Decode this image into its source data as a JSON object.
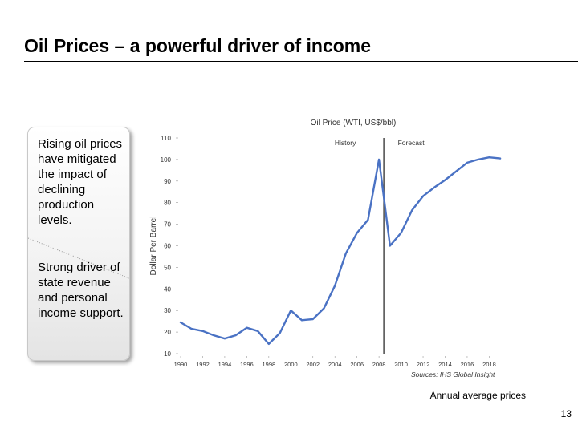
{
  "slide": {
    "title": "Oil Prices – a powerful driver of income",
    "callout": {
      "point1": "Rising oil prices have mitigated the impact of declining production levels.",
      "point2": "Strong driver of state revenue and personal income support."
    },
    "caption": "Annual average prices",
    "page_number": "13"
  },
  "colors": {
    "line": "#4a72c4",
    "divider": "#555555",
    "axis": "#999999"
  },
  "chart_data": {
    "type": "line",
    "title": "Oil Price (WTI, US$/bbl)",
    "ylabel": "Dollar Per Barrel",
    "xlabel": "",
    "source": "Sources: IHS Global Insight",
    "ylim": [
      10,
      110
    ],
    "yticks": [
      10,
      20,
      30,
      40,
      50,
      60,
      70,
      80,
      90,
      100,
      110
    ],
    "xlim": [
      1990,
      2020
    ],
    "xticks": [
      "1990",
      "1992",
      "1994",
      "1996",
      "1998",
      "2000",
      "2002",
      "2004",
      "2006",
      "2008",
      "2010",
      "2012",
      "2014",
      "2016",
      "2018"
    ],
    "divider_year": 2008,
    "region_labels": [
      "History",
      "Forecast"
    ],
    "series": [
      {
        "name": "WTI Oil Price",
        "x": [
          1990,
          1991,
          1992,
          1993,
          1994,
          1995,
          1996,
          1997,
          1998,
          1999,
          2000,
          2001,
          2002,
          2003,
          2004,
          2005,
          2006,
          2007,
          2008,
          2008.5,
          2009,
          2010,
          2011,
          2012,
          2013,
          2014,
          2015,
          2016,
          2017,
          2018,
          2019
        ],
        "values": [
          24.5,
          21.5,
          20.5,
          18.5,
          17,
          18.5,
          22,
          20.5,
          14.5,
          19.5,
          30,
          25.5,
          26,
          31,
          41.5,
          56.5,
          66,
          72,
          100,
          80,
          60,
          66,
          76.5,
          83,
          87,
          90.5,
          94.5,
          98.5,
          100,
          101,
          100.5
        ]
      }
    ]
  }
}
